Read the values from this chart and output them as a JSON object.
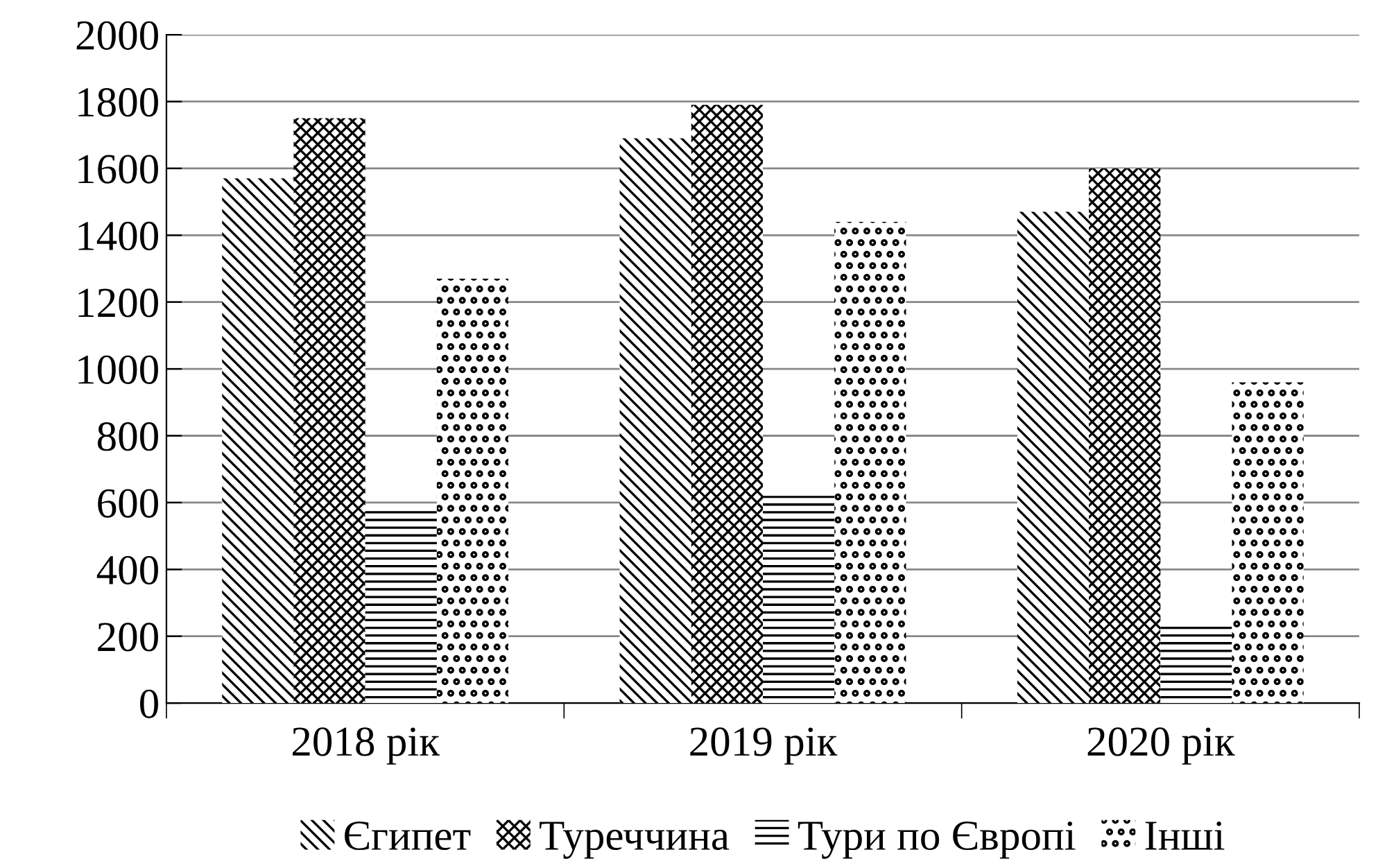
{
  "chart_data": {
    "type": "bar",
    "categories": [
      "2018 рік",
      "2019 рік",
      "2020 рік"
    ],
    "series": [
      {
        "name": "Єгипет",
        "color": "#000000",
        "values": [
          1570,
          1690,
          1470
        ]
      },
      {
        "name": "Туреччина",
        "color": "#000000",
        "values": [
          1750,
          1790,
          1600
        ]
      },
      {
        "name": "Тури по Європі",
        "color": "#000000",
        "values": [
          580,
          620,
          240
        ]
      },
      {
        "name": "Інші",
        "color": "#000000",
        "values": [
          1270,
          1440,
          960
        ]
      }
    ],
    "ylim": [
      0,
      2000
    ],
    "yticks": [
      0,
      200,
      400,
      600,
      800,
      1000,
      1200,
      1400,
      1600,
      1800,
      2000
    ],
    "grid": "y",
    "legend": "bottom"
  }
}
